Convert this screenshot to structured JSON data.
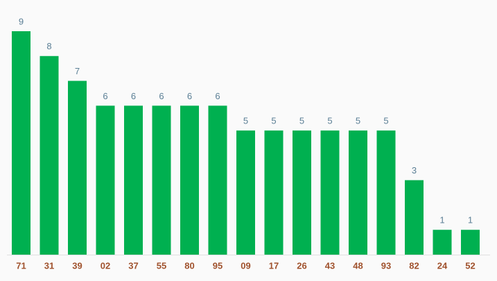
{
  "chart_data": {
    "type": "bar",
    "categories": [
      "71",
      "31",
      "39",
      "02",
      "37",
      "55",
      "80",
      "95",
      "09",
      "17",
      "26",
      "43",
      "48",
      "93",
      "82",
      "24",
      "52"
    ],
    "values": [
      9,
      8,
      7,
      6,
      6,
      6,
      6,
      6,
      5,
      5,
      5,
      5,
      5,
      5,
      3,
      1,
      1
    ],
    "color": "#00b050"
  }
}
